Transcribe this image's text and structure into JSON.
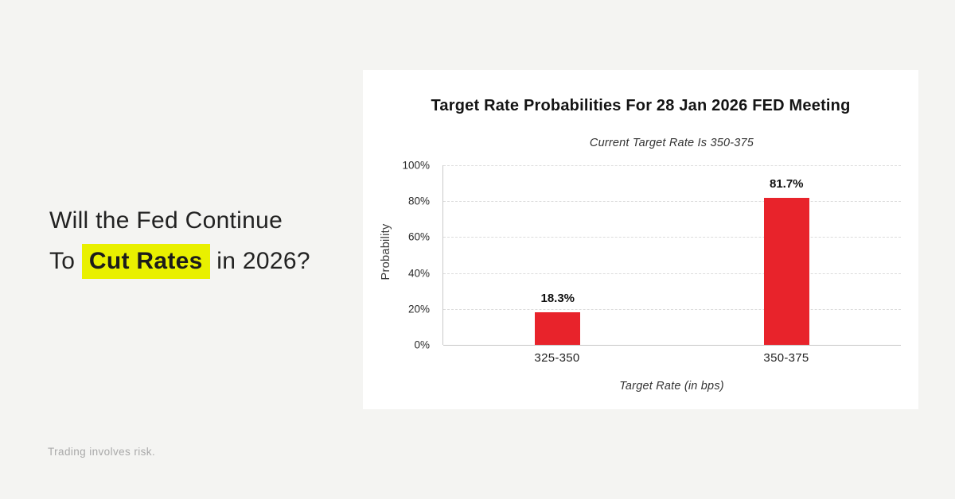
{
  "page": {
    "headline": {
      "line1": "Will the Fed Continue",
      "line2_prefix": "To ",
      "highlight": "Cut Rates",
      "line2_suffix": " in 2026?"
    },
    "disclaimer": "Trading involves risk.",
    "colors": {
      "background": "#f4f4f2",
      "card": "#ffffff",
      "highlight": "#e9f000",
      "bar": "#e8232b",
      "grid": "#dcdcdc",
      "muted_text": "#a9a9a9"
    }
  },
  "chart_data": {
    "type": "bar",
    "title": "Target Rate Probabilities For 28 Jan 2026 FED Meeting",
    "subtitle": "Current Target Rate Is 350-375",
    "categories": [
      "325-350",
      "350-375"
    ],
    "values": [
      18.3,
      81.7
    ],
    "value_labels": [
      "18.3%",
      "81.7%"
    ],
    "xlabel": "Target Rate (in bps)",
    "ylabel": "Probability",
    "ylim": [
      0,
      100
    ],
    "yticks": [
      0,
      20,
      40,
      60,
      80,
      100
    ],
    "ytick_labels": [
      "0%",
      "20%",
      "40%",
      "60%",
      "80%",
      "100%"
    ],
    "grid": "horizontal-dashed",
    "legend": "none",
    "bar_color": "#e8232b"
  }
}
